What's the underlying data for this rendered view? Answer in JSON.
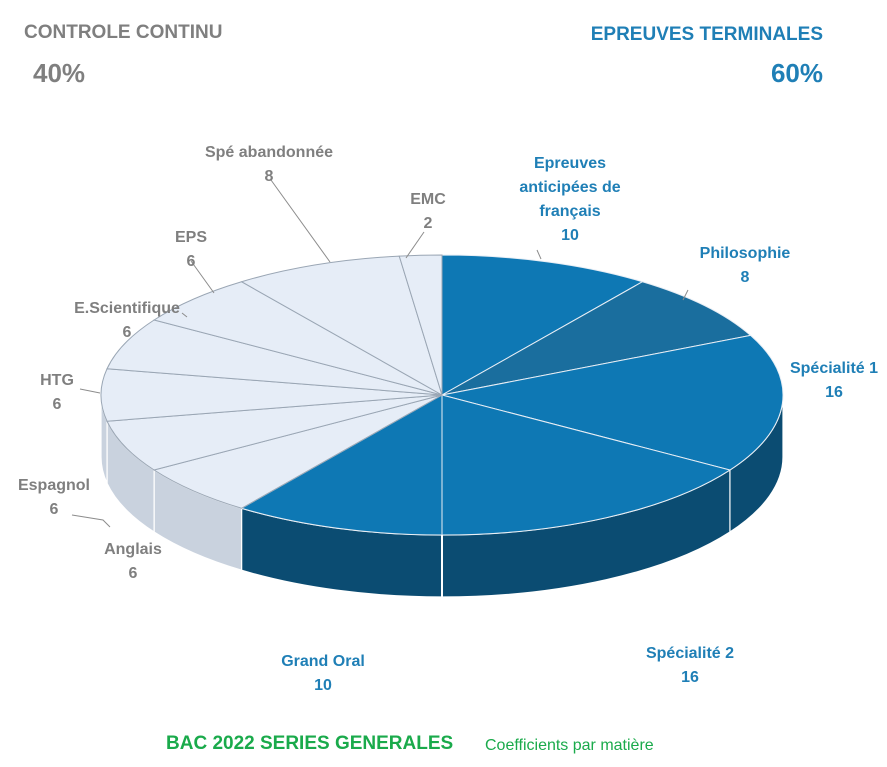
{
  "header": {
    "controle_continu": {
      "title": "CONTROLE CONTINU",
      "percent": "40%"
    },
    "epreuves_terminales": {
      "title": "EPREUVES TERMINALES",
      "percent": "60%"
    }
  },
  "footer": {
    "title": "BAC 2022  SERIES GENERALES",
    "subtitle": "Coefficients par matière"
  },
  "colors": {
    "terminal": "#0e78b4",
    "terminal_alt": "#1a6e9e",
    "terminal_side": "#0b4c72",
    "continu": "#e6edf7",
    "continu_side": "#c9d2de",
    "label_terminal": "#1f7fb6",
    "label_continu": "#7f7f7f"
  },
  "chart_data": {
    "type": "pie",
    "title": "BAC 2022  SERIES GENERALES",
    "subtitle": "Coefficients par matière",
    "groups": [
      {
        "name": "EPREUVES TERMINALES",
        "percent": 60
      },
      {
        "name": "CONTROLE CONTINU",
        "percent": 40
      }
    ],
    "slices": [
      {
        "label": [
          "Epreuves",
          "anticipées de",
          "français"
        ],
        "value": 10,
        "group": "terminal"
      },
      {
        "label": [
          "Philosophie"
        ],
        "value": 8,
        "group": "terminal"
      },
      {
        "label": [
          "Spécialité 1"
        ],
        "value": 16,
        "group": "terminal"
      },
      {
        "label": [
          "Spécialité 2"
        ],
        "value": 16,
        "group": "terminal"
      },
      {
        "label": [
          "Grand Oral"
        ],
        "value": 10,
        "group": "terminal"
      },
      {
        "label": [
          "Anglais"
        ],
        "value": 6,
        "group": "continu"
      },
      {
        "label": [
          "Espagnol"
        ],
        "value": 6,
        "group": "continu"
      },
      {
        "label": [
          "HTG"
        ],
        "value": 6,
        "group": "continu"
      },
      {
        "label": [
          "E.Scientifique"
        ],
        "value": 6,
        "group": "continu"
      },
      {
        "label": [
          "EPS"
        ],
        "value": 6,
        "group": "continu"
      },
      {
        "label": [
          "Spé abandonnée"
        ],
        "value": 8,
        "group": "continu"
      },
      {
        "label": [
          "EMC"
        ],
        "value": 2,
        "group": "continu"
      }
    ]
  }
}
